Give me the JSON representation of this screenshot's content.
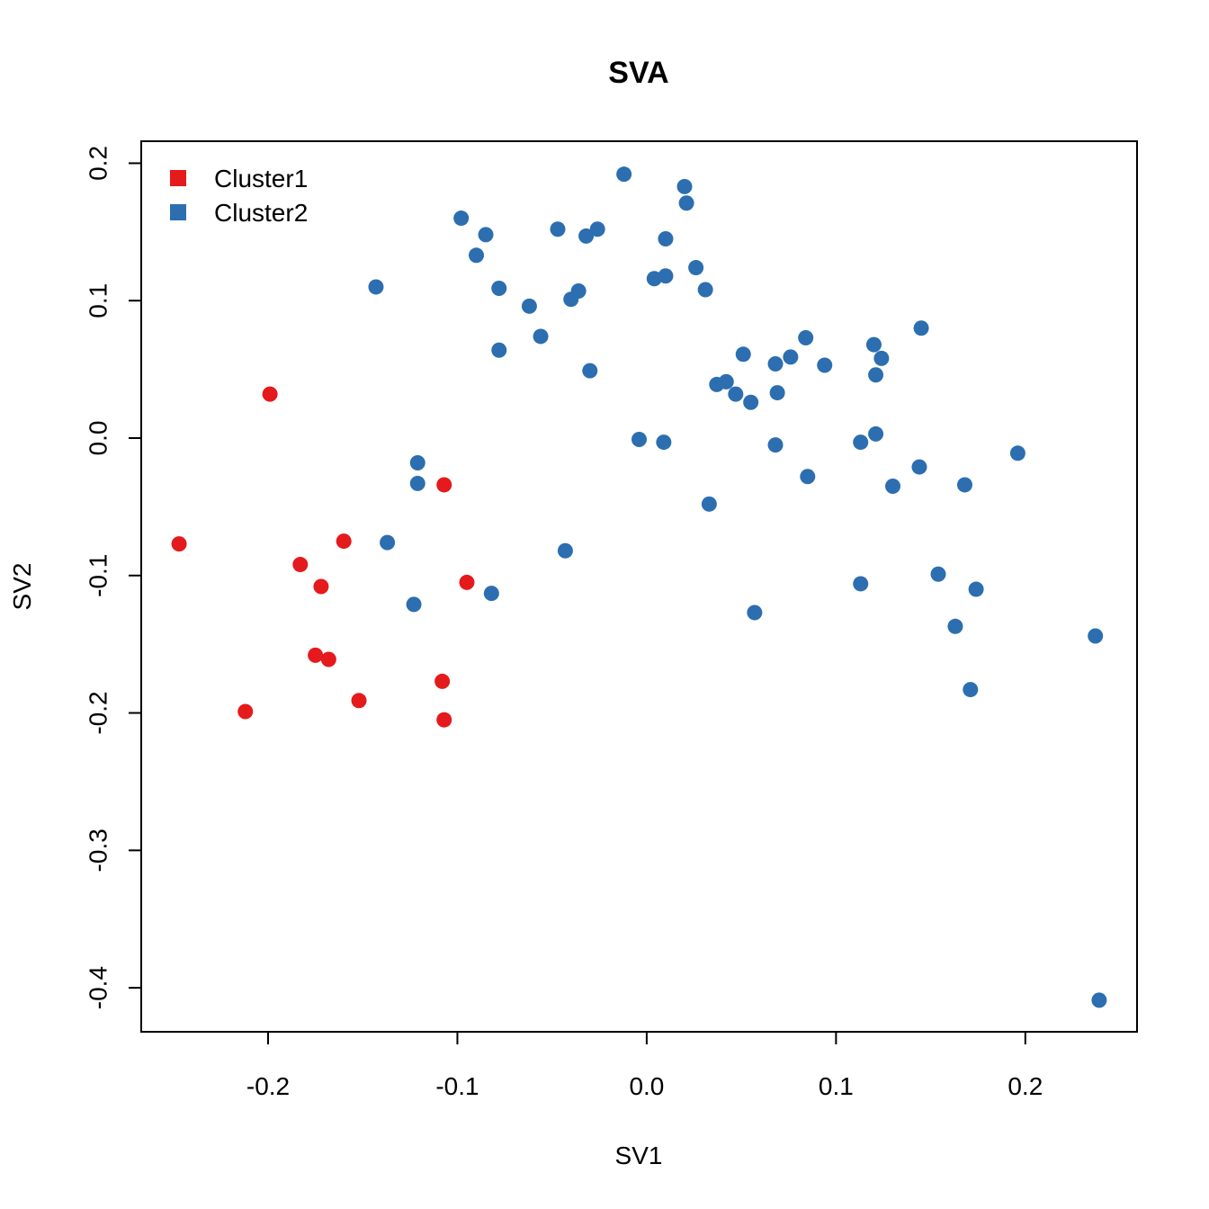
{
  "chart_data": {
    "type": "scatter",
    "title": "SVA",
    "xlabel": "SV1",
    "ylabel": "SV2",
    "xlim": [
      -0.267,
      0.259
    ],
    "ylim": [
      -0.432,
      0.216
    ],
    "xticks": [
      -0.2,
      -0.1,
      0.0,
      0.1,
      0.2
    ],
    "xtick_labels": [
      "-0.2",
      "-0.1",
      "0.0",
      "0.1",
      "0.2"
    ],
    "yticks": [
      -0.4,
      -0.3,
      -0.2,
      -0.1,
      0.0,
      0.1,
      0.2
    ],
    "ytick_labels": [
      "-0.4",
      "-0.3",
      "-0.2",
      "-0.1",
      "0.0",
      "0.1",
      "0.2"
    ],
    "grid": false,
    "legend_position": "top-left",
    "series": [
      {
        "name": "Cluster1",
        "color": "#E41A1C",
        "points": [
          [
            -0.199,
            0.032
          ],
          [
            -0.107,
            -0.034
          ],
          [
            -0.247,
            -0.077
          ],
          [
            -0.16,
            -0.075
          ],
          [
            -0.183,
            -0.092
          ],
          [
            -0.172,
            -0.108
          ],
          [
            -0.095,
            -0.105
          ],
          [
            -0.175,
            -0.158
          ],
          [
            -0.168,
            -0.161
          ],
          [
            -0.108,
            -0.177
          ],
          [
            -0.152,
            -0.191
          ],
          [
            -0.212,
            -0.199
          ],
          [
            -0.107,
            -0.205
          ]
        ]
      },
      {
        "name": "Cluster2",
        "color": "#2C6EB0",
        "points": [
          [
            -0.012,
            0.192
          ],
          [
            0.02,
            0.183
          ],
          [
            0.021,
            0.171
          ],
          [
            -0.098,
            0.16
          ],
          [
            -0.085,
            0.148
          ],
          [
            -0.047,
            0.152
          ],
          [
            -0.032,
            0.147
          ],
          [
            -0.026,
            0.152
          ],
          [
            -0.09,
            0.133
          ],
          [
            0.01,
            0.145
          ],
          [
            -0.143,
            0.11
          ],
          [
            -0.078,
            0.109
          ],
          [
            -0.062,
            0.096
          ],
          [
            -0.04,
            0.101
          ],
          [
            -0.036,
            0.107
          ],
          [
            0.004,
            0.116
          ],
          [
            0.01,
            0.118
          ],
          [
            0.026,
            0.124
          ],
          [
            0.031,
            0.108
          ],
          [
            -0.056,
            0.074
          ],
          [
            -0.078,
            0.064
          ],
          [
            -0.03,
            0.049
          ],
          [
            0.084,
            0.073
          ],
          [
            0.076,
            0.059
          ],
          [
            0.051,
            0.061
          ],
          [
            0.068,
            0.054
          ],
          [
            0.094,
            0.053
          ],
          [
            0.12,
            0.068
          ],
          [
            0.124,
            0.058
          ],
          [
            0.121,
            0.046
          ],
          [
            0.145,
            0.08
          ],
          [
            0.037,
            0.039
          ],
          [
            0.042,
            0.041
          ],
          [
            0.047,
            0.032
          ],
          [
            0.055,
            0.026
          ],
          [
            0.069,
            0.033
          ],
          [
            -0.004,
            -0.001
          ],
          [
            0.009,
            -0.003
          ],
          [
            0.068,
            -0.005
          ],
          [
            0.113,
            -0.003
          ],
          [
            0.121,
            0.003
          ],
          [
            0.196,
            -0.011
          ],
          [
            -0.121,
            -0.018
          ],
          [
            -0.121,
            -0.033
          ],
          [
            0.085,
            -0.028
          ],
          [
            0.144,
            -0.021
          ],
          [
            0.13,
            -0.035
          ],
          [
            0.168,
            -0.034
          ],
          [
            0.033,
            -0.048
          ],
          [
            -0.137,
            -0.076
          ],
          [
            -0.043,
            -0.082
          ],
          [
            -0.082,
            -0.113
          ],
          [
            -0.123,
            -0.121
          ],
          [
            0.113,
            -0.106
          ],
          [
            0.154,
            -0.099
          ],
          [
            0.174,
            -0.11
          ],
          [
            0.057,
            -0.127
          ],
          [
            0.163,
            -0.137
          ],
          [
            0.237,
            -0.144
          ],
          [
            0.171,
            -0.183
          ],
          [
            0.239,
            -0.409
          ]
        ]
      }
    ]
  }
}
